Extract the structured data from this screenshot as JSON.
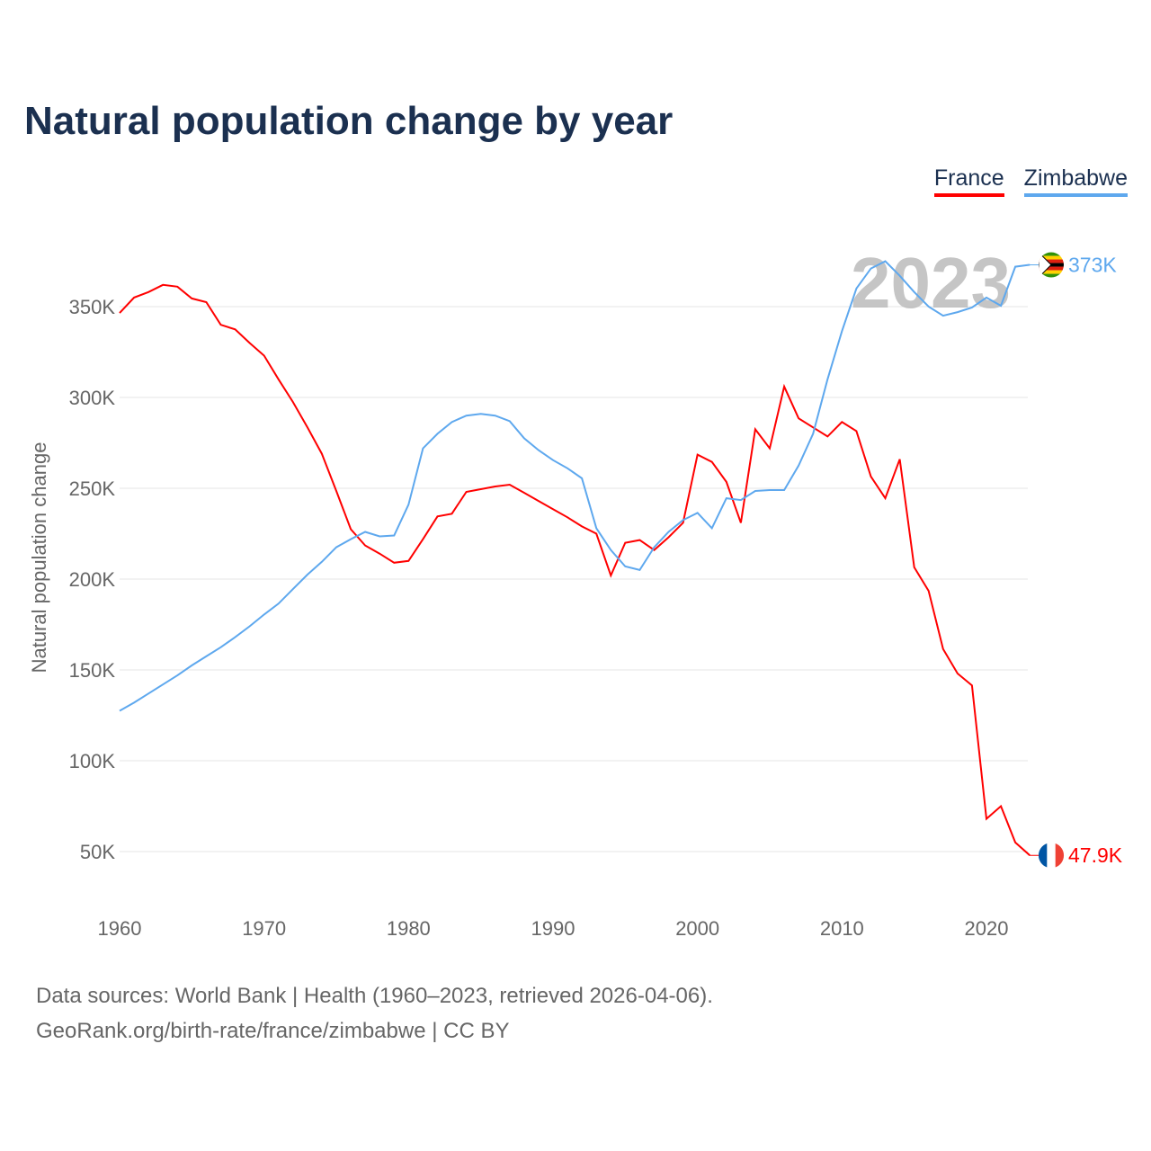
{
  "title": "Natural population change by year",
  "source_line1": "Data sources: World Bank | Health (1960–2023, retrieved 2026-04-06).",
  "source_line2": "GeoRank.org/birth-rate/france/zimbabwe | CC BY",
  "year_watermark": "2023",
  "chart_data": {
    "type": "line",
    "title": "Natural population change by year",
    "xlabel": "",
    "ylabel": "Natural population change",
    "xlim": [
      1960,
      2023
    ],
    "ylim": [
      30000,
      380000
    ],
    "x_ticks": [
      1960,
      1970,
      1980,
      1990,
      2000,
      2010,
      2020
    ],
    "x_tick_labels": [
      "1960",
      "1970",
      "1980",
      "1990",
      "2000",
      "2010",
      "2020"
    ],
    "y_ticks": [
      50000,
      100000,
      150000,
      200000,
      250000,
      300000,
      350000
    ],
    "y_tick_labels": [
      "50K",
      "100K",
      "150K",
      "200K",
      "250K",
      "300K",
      "350K"
    ],
    "grid": true,
    "legend": "top-right",
    "x": [
      1960,
      1961,
      1962,
      1963,
      1964,
      1965,
      1966,
      1967,
      1968,
      1969,
      1970,
      1971,
      1972,
      1973,
      1974,
      1975,
      1976,
      1977,
      1978,
      1979,
      1980,
      1981,
      1982,
      1983,
      1984,
      1985,
      1986,
      1987,
      1988,
      1989,
      1990,
      1991,
      1992,
      1993,
      1994,
      1995,
      1996,
      1997,
      1998,
      1999,
      2000,
      2001,
      2002,
      2003,
      2004,
      2005,
      2006,
      2007,
      2008,
      2009,
      2010,
      2011,
      2012,
      2013,
      2014,
      2015,
      2016,
      2017,
      2018,
      2019,
      2020,
      2021,
      2022,
      2023
    ],
    "series": [
      {
        "name": "France",
        "color": "#ff0000",
        "end_label": "47.9K",
        "values": [
          346500,
          355000,
          358000,
          362000,
          361000,
          354500,
          352500,
          340000,
          337500,
          330000,
          323000,
          310000,
          297500,
          283500,
          269000,
          248500,
          227500,
          218500,
          214000,
          209000,
          210000,
          222000,
          234500,
          236000,
          248000,
          249500,
          251000,
          252000,
          247500,
          243000,
          238500,
          234000,
          229000,
          225000,
          202000,
          220000,
          221500,
          216000,
          223000,
          231000,
          268500,
          264500,
          253500,
          231000,
          282500,
          272000,
          306000,
          288500,
          283500,
          278500,
          286500,
          281500,
          256500,
          244500,
          266000,
          206500,
          193500,
          161500,
          148000,
          141500,
          68000,
          75000,
          55000,
          47900
        ]
      },
      {
        "name": "Zimbabwe",
        "color": "#5ea8ee",
        "end_label": "373K",
        "values": [
          127500,
          132000,
          137000,
          142000,
          147000,
          152500,
          157500,
          162500,
          168000,
          174000,
          180500,
          186500,
          194500,
          202500,
          209500,
          217500,
          222000,
          226000,
          223500,
          224000,
          241000,
          272000,
          280000,
          286500,
          290000,
          291000,
          290000,
          287000,
          277500,
          271000,
          265500,
          261000,
          255500,
          228000,
          216000,
          207000,
          205000,
          217500,
          226000,
          232500,
          236500,
          228000,
          244500,
          243500,
          248500,
          249000,
          249000,
          262500,
          280000,
          310000,
          336500,
          360000,
          371000,
          375000,
          367000,
          358000,
          350000,
          345000,
          347000,
          349500,
          355000,
          350500,
          372000,
          373000
        ]
      }
    ]
  }
}
